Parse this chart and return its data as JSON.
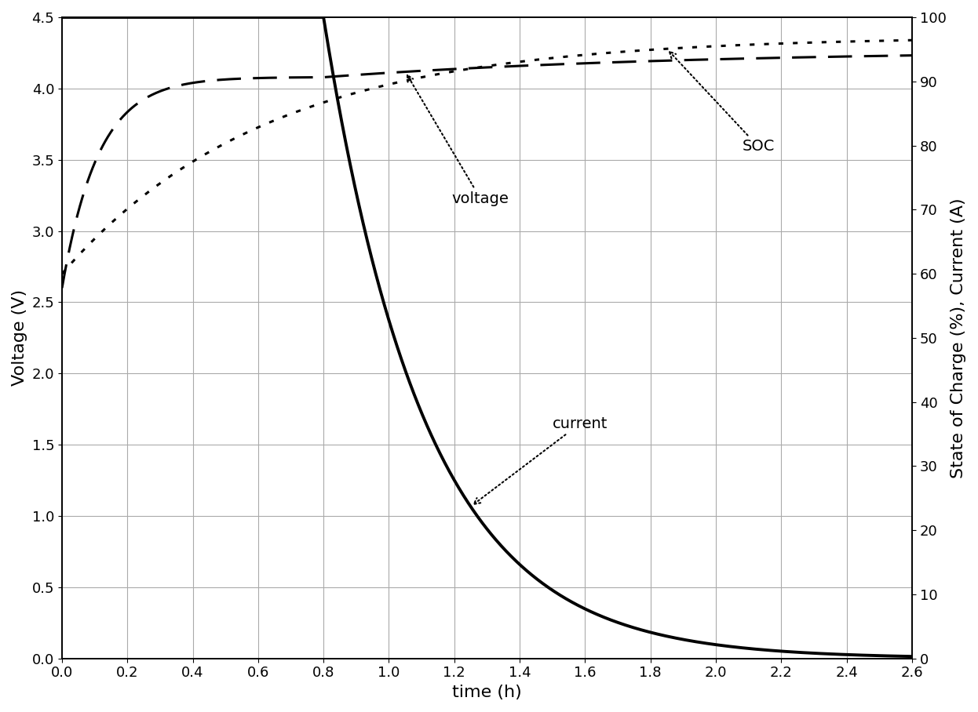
{
  "xlabel": "time (h)",
  "ylabel_left": "Voltage (V)",
  "ylabel_right": "State of Charge (%), Current (A)",
  "xlim": [
    0,
    2.6
  ],
  "ylim_left": [
    0.0,
    4.5
  ],
  "ylim_right": [
    0,
    100
  ],
  "xticks": [
    0,
    0.2,
    0.4,
    0.6,
    0.8,
    1.0,
    1.2,
    1.4,
    1.6,
    1.8,
    2.0,
    2.2,
    2.4,
    2.6
  ],
  "yticks_left": [
    0.0,
    0.5,
    1.0,
    1.5,
    2.0,
    2.5,
    3.0,
    3.5,
    4.0,
    4.5
  ],
  "yticks_right": [
    0,
    10,
    20,
    30,
    40,
    50,
    60,
    70,
    80,
    90,
    100
  ],
  "background_color": "#ffffff",
  "grid_color": "#aaaaaa",
  "line_color": "#000000"
}
